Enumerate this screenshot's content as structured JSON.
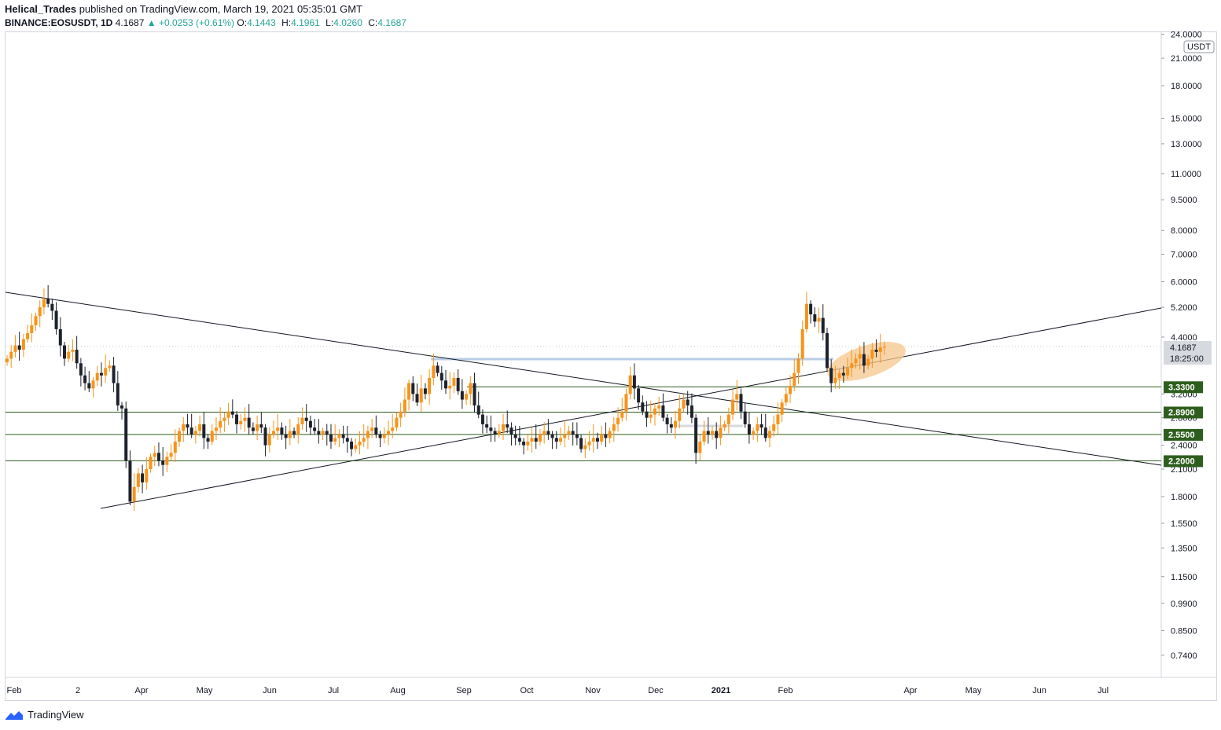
{
  "header": {
    "author": "Helical_Trades",
    "published_text": "published on TradingView.com, March 19, 2021 05:35:01 GMT",
    "symbol": "BINANCE:EOSUSDT, 1D",
    "last": "4.1687",
    "change_arrow": "▲",
    "change": "+0.0253 (+0.61%)",
    "o_label": "O:",
    "o": "4.1443",
    "h_label": "H:",
    "h": "4.1961",
    "l_label": "L:",
    "l": "4.0260",
    "c_label": "C:",
    "c": "4.1687"
  },
  "footer": {
    "brand": "TradingView"
  },
  "colors": {
    "up": "#f7931a",
    "down": "#1e222d",
    "level_line": "#2e5e1e",
    "level_box": "#2e5e1e",
    "highlight": "#f5c68c"
  },
  "chart_data": {
    "type": "candlestick",
    "symbol": "EOSUSDT",
    "interval": "1D",
    "y_scale": "log",
    "y_range": [
      0.64,
      25.0
    ],
    "currency_badge": "USDT",
    "y_ticks": [
      "24.0000",
      "21.0000",
      "18.0000",
      "15.0000",
      "13.0000",
      "11.0000",
      "9.5000",
      "8.0000",
      "7.0000",
      "6.0000",
      "5.2000",
      "4.4000",
      "3.2000",
      "2.8000",
      "2.4000",
      "2.1000",
      "1.8000",
      "1.5500",
      "1.3500",
      "1.1500",
      "0.9900",
      "0.8500",
      "0.7400"
    ],
    "x_ticks": [
      "Feb",
      "2",
      "Apr",
      "May",
      "Jun",
      "Jul",
      "Aug",
      "Sep",
      "Oct",
      "Nov",
      "Dec",
      "2021",
      "Feb",
      "Apr",
      "May",
      "Jun",
      "Jul"
    ],
    "price_label": "4.1687",
    "countdown": "18:25:00",
    "levels": [
      {
        "label": "3.3300",
        "value": 3.33
      },
      {
        "label": "2.8900",
        "value": 2.89
      },
      {
        "label": "2.5500",
        "value": 2.55
      },
      {
        "label": "2.2000",
        "value": 2.2
      }
    ],
    "resistance_band": 3.7,
    "closes": [
      3.9,
      4.05,
      4.2,
      4.1,
      4.35,
      4.5,
      4.7,
      4.95,
      5.2,
      5.45,
      5.3,
      5.1,
      4.6,
      4.2,
      3.9,
      4.05,
      4.1,
      3.8,
      3.55,
      3.4,
      3.3,
      3.45,
      3.6,
      3.55,
      3.7,
      3.75,
      3.4,
      3.0,
      2.95,
      2.2,
      1.75,
      1.9,
      2.05,
      1.95,
      2.1,
      2.25,
      2.3,
      2.2,
      2.15,
      2.25,
      2.3,
      2.45,
      2.6,
      2.7,
      2.65,
      2.55,
      2.6,
      2.7,
      2.5,
      2.45,
      2.6,
      2.65,
      2.75,
      2.8,
      2.9,
      2.85,
      2.7,
      2.75,
      2.8,
      2.65,
      2.6,
      2.7,
      2.65,
      2.4,
      2.55,
      2.6,
      2.65,
      2.55,
      2.5,
      2.6,
      2.55,
      2.7,
      2.8,
      2.75,
      2.65,
      2.6,
      2.55,
      2.6,
      2.55,
      2.45,
      2.5,
      2.55,
      2.5,
      2.45,
      2.35,
      2.4,
      2.45,
      2.5,
      2.6,
      2.65,
      2.55,
      2.5,
      2.55,
      2.6,
      2.65,
      2.8,
      2.9,
      3.1,
      3.4,
      3.2,
      3.05,
      3.3,
      3.2,
      3.5,
      3.75,
      3.6,
      3.45,
      3.3,
      3.35,
      3.5,
      3.25,
      3.1,
      3.2,
      3.4,
      3.0,
      2.85,
      2.7,
      2.65,
      2.6,
      2.55,
      2.6,
      2.7,
      2.65,
      2.55,
      2.5,
      2.45,
      2.4,
      2.45,
      2.5,
      2.45,
      2.55,
      2.6,
      2.55,
      2.5,
      2.45,
      2.5,
      2.55,
      2.6,
      2.55,
      2.5,
      2.35,
      2.4,
      2.45,
      2.5,
      2.45,
      2.55,
      2.5,
      2.6,
      2.7,
      2.8,
      2.9,
      3.2,
      3.55,
      3.3,
      3.05,
      2.9,
      2.8,
      2.85,
      2.95,
      3.0,
      2.8,
      2.7,
      2.65,
      2.75,
      2.95,
      3.1,
      3.0,
      2.8,
      2.3,
      2.45,
      2.6,
      2.55,
      2.6,
      2.5,
      2.65,
      2.7,
      2.85,
      3.1,
      3.2,
      2.9,
      2.7,
      2.55,
      2.6,
      2.7,
      2.65,
      2.5,
      2.6,
      2.7,
      2.85,
      3.05,
      3.2,
      3.35,
      3.6,
      3.9,
      4.6,
      5.3,
      5.0,
      4.8,
      4.9,
      4.5,
      3.7,
      3.4,
      3.5,
      3.6,
      3.55,
      3.7,
      3.8,
      3.9,
      4.0,
      3.75,
      3.9,
      4.1,
      4.05,
      4.15,
      4.17
    ]
  }
}
